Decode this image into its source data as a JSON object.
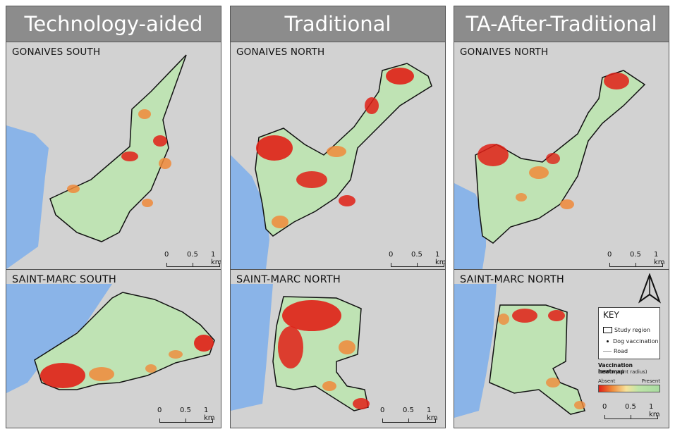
{
  "columns": [
    {
      "title": "Technology-aided",
      "top_label": "GONAIVES SOUTH",
      "bottom_label": "SAINT-MARC SOUTH"
    },
    {
      "title": "Traditional",
      "top_label": "GONAIVES NORTH",
      "bottom_label": "SAINT-MARC NORTH"
    },
    {
      "title": "TA-After-Traditional",
      "top_label": "GONAIVES NORTH",
      "bottom_label": "SAINT-MARC NORTH"
    }
  ],
  "scalebar": {
    "t0": "0",
    "t1": "0.5",
    "t2": "1 km"
  },
  "legend": {
    "key_title": "KEY",
    "study_region": "Study region",
    "dog_vaccination": "Dog vaccination",
    "road": "Road",
    "heatmap_title": "Vaccination heatmap",
    "heatmap_sub": "(200m point radius)",
    "absent": "Absent",
    "present": "Present"
  },
  "colors": {
    "water": "#8ab4e8",
    "land": "#d2d2d2",
    "region_fill": "#bfe3b4",
    "heat_high": "#e02016",
    "heat_mid": "#f08a3a",
    "header_bg": "#8c8c8c"
  },
  "icons": [
    "north-arrow-icon"
  ]
}
